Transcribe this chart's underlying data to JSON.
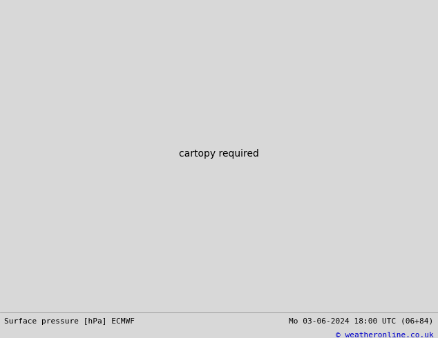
{
  "title_left": "Surface pressure [hPa] ECMWF",
  "title_right": "Mo 03-06-2024 18:00 UTC (06+84)",
  "copyright": "© weatheronline.co.uk",
  "bg_color": "#d8d8d8",
  "land_color": "#b4e6a0",
  "ocean_color": "#d0d0d0",
  "mountain_color": "#a0a080",
  "fig_width": 6.34,
  "fig_height": 4.9,
  "dpi": 100,
  "contour_blue_color": "#0000dd",
  "contour_red_color": "#dd0000",
  "contour_black_color": "#000000",
  "label_fontsize": 6,
  "footer_fontsize": 8,
  "copyright_fontsize": 8,
  "copyright_color": "#0000cc",
  "map_extent": [
    -175,
    -45,
    18,
    78
  ],
  "central_longitude": -100,
  "central_latitude": 45,
  "pressure_base": 1013.0,
  "pressure_levels_step": 4,
  "pressure_low": 980,
  "pressure_high": 1044
}
